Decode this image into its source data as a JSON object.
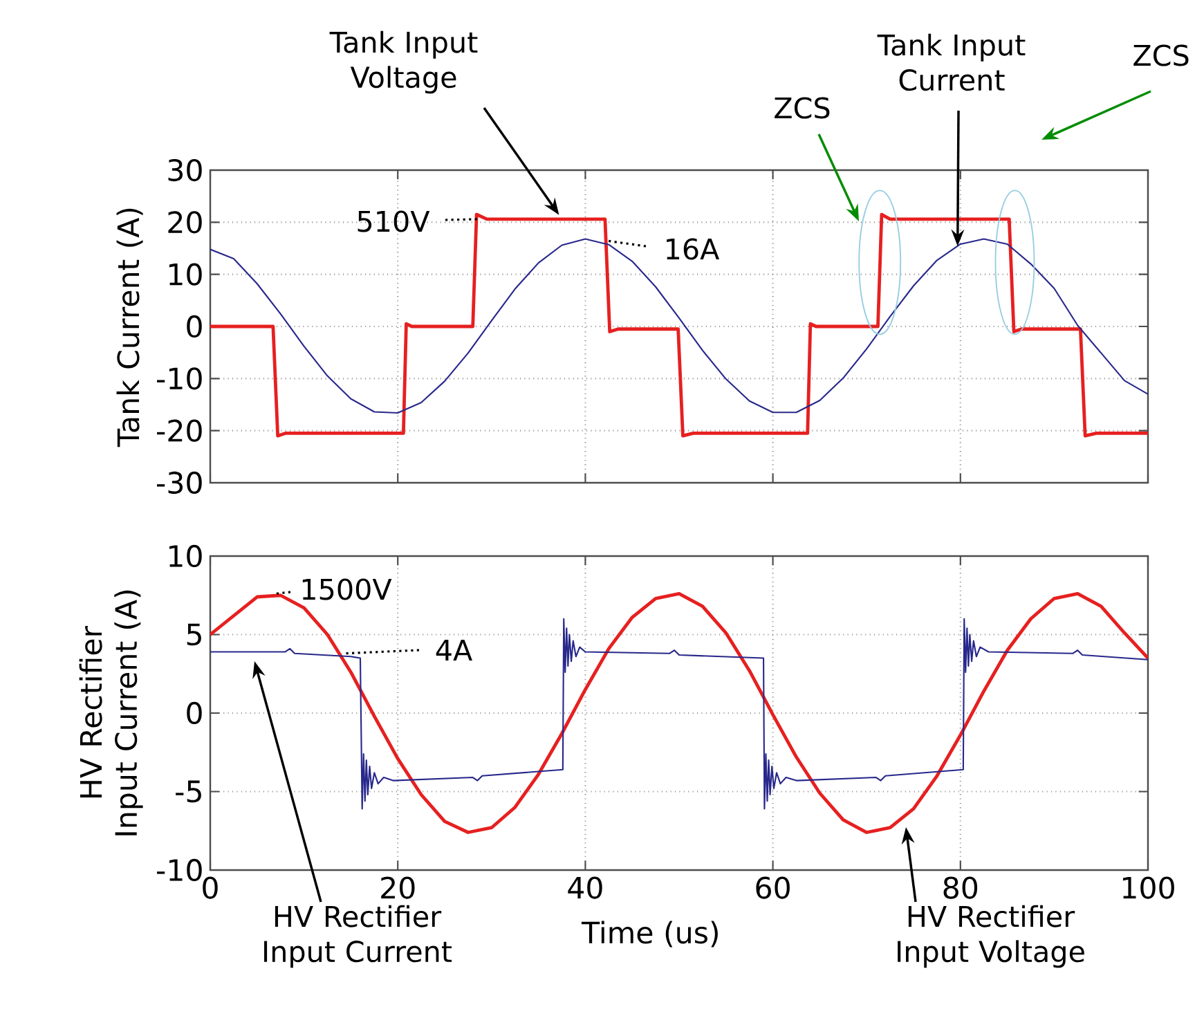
{
  "chart_data": [
    {
      "type": "line",
      "ylabel": "Tank Current (A)",
      "xlim": [
        0,
        100
      ],
      "xticks": [
        0,
        20,
        40,
        60,
        80,
        100
      ],
      "ylim": [
        -30,
        30
      ],
      "yticks": [
        -30,
        -20,
        -10,
        0,
        10,
        20,
        30
      ],
      "grid": true,
      "tick_labels": "y",
      "series": [
        {
          "color": "#e62020",
          "x": [
            0,
            6.7,
            7.2,
            8,
            20.6,
            20.9,
            21.5,
            28.0,
            28.4,
            29.5,
            42.1,
            42.6,
            43.5,
            49.9,
            50.4,
            51.5,
            63.7,
            64.0,
            64.6,
            71.2,
            71.6,
            72.5,
            85.2,
            85.7,
            86.5,
            92.8,
            93.3,
            94.5,
            100
          ],
          "values": [
            0,
            0,
            -21,
            -20.5,
            -20.5,
            0.5,
            0,
            0,
            21.5,
            20.6,
            20.6,
            -1,
            -0.5,
            -0.5,
            -21,
            -20.5,
            -20.5,
            0.5,
            0,
            0,
            21.5,
            20.6,
            20.6,
            -1,
            -0.5,
            -0.5,
            -21,
            -20.5,
            -20.5
          ]
        },
        {
          "color": "#28288c",
          "x": [
            0,
            2.5,
            5,
            7.5,
            10,
            12.5,
            15,
            17.5,
            20,
            22.5,
            25,
            27.5,
            30,
            32.5,
            35,
            37.5,
            40,
            42.5,
            45,
            47.5,
            50,
            52.5,
            55,
            57.5,
            60,
            62.5,
            65,
            67.5,
            70,
            72.5,
            75,
            77.5,
            80,
            82.5,
            85,
            87.5,
            90,
            92.5,
            95,
            97.5,
            100
          ],
          "values": [
            14.8,
            13.0,
            8.2,
            2.4,
            -3.8,
            -9.5,
            -13.9,
            -16.4,
            -16.6,
            -14.6,
            -10.5,
            -5.1,
            1.1,
            7.2,
            12.2,
            15.6,
            16.8,
            15.7,
            12.5,
            7.6,
            1.6,
            -4.6,
            -10.1,
            -14.3,
            -16.5,
            -16.5,
            -14.2,
            -9.9,
            -4.3,
            1.9,
            7.8,
            12.7,
            15.8,
            16.8,
            15.8,
            12.0,
            7.3,
            0.2,
            -5.1,
            -10.4,
            -13.0
          ]
        }
      ],
      "annotations": [
        {
          "text": "Tank Input Voltage",
          "x": 37.2,
          "y": 21.4
        },
        {
          "text": "510V",
          "x": 28.7,
          "y": 20.6
        },
        {
          "text": "16A",
          "x": 42.1,
          "y": 16.5
        },
        "ZCS",
        {
          "text": "Tank Input Current",
          "x": 79.7,
          "y": 15.4
        },
        "ZCS"
      ]
    },
    {
      "type": "line",
      "ylabel": "HV Rectifier Input Current (A)",
      "xlabel": "Time (us)",
      "xlim": [
        0,
        100
      ],
      "xticks": [
        0,
        20,
        40,
        60,
        80,
        100
      ],
      "ylim": [
        -10,
        10
      ],
      "yticks": [
        -10,
        -5,
        0,
        5,
        10
      ],
      "grid": true,
      "series": [
        {
          "color": "#e62020",
          "x": [
            0,
            2.5,
            5,
            7.5,
            10,
            12.5,
            15,
            17.5,
            20,
            22.5,
            25,
            27.5,
            30,
            32.5,
            35,
            37.5,
            40,
            42.5,
            45,
            47.5,
            50,
            52.5,
            55,
            57.5,
            60,
            62.5,
            65,
            67.5,
            70,
            72.5,
            75,
            77.5,
            80,
            82.5,
            85,
            87.5,
            90,
            92.5,
            95,
            97.5,
            100
          ],
          "values": [
            5.0,
            6.2,
            7.4,
            7.5,
            6.7,
            5.0,
            2.6,
            -0.2,
            -2.9,
            -5.2,
            -6.9,
            -7.6,
            -7.3,
            -6.0,
            -3.9,
            -1.3,
            1.5,
            4.1,
            6.1,
            7.3,
            7.6,
            6.8,
            5.1,
            2.7,
            -0.1,
            -2.8,
            -5.1,
            -6.8,
            -7.6,
            -7.3,
            -6.1,
            -4.0,
            -1.4,
            1.4,
            4.0,
            6.0,
            7.3,
            7.6,
            6.8,
            5.1,
            3.5
          ]
        },
        {
          "color": "#28288c",
          "x": [
            0,
            8,
            8.5,
            9,
            15,
            16.0,
            16.2,
            16.35,
            16.5,
            16.65,
            16.8,
            17.0,
            17.2,
            17.5,
            17.9,
            18.5,
            19.5,
            28,
            28.5,
            29,
            37.6,
            37.7,
            37.85,
            38.0,
            38.15,
            38.3,
            38.5,
            38.7,
            39.0,
            39.4,
            40,
            49,
            49.5,
            50,
            59.0,
            59.1,
            59.25,
            59.4,
            59.55,
            59.7,
            59.9,
            60.1,
            60.4,
            60.8,
            61.4,
            62.5,
            71,
            71.5,
            72,
            80.3,
            80.4,
            80.55,
            80.7,
            80.85,
            81.0,
            81.2,
            81.4,
            81.7,
            82.1,
            83,
            92,
            92.5,
            93,
            100
          ],
          "values": [
            3.9,
            3.9,
            4.1,
            3.8,
            3.6,
            3.5,
            -6.1,
            -2.6,
            -5.6,
            -3.0,
            -5.2,
            -3.4,
            -4.8,
            -3.8,
            -4.5,
            -4.1,
            -4.3,
            -4.1,
            -4.3,
            -4.0,
            -3.6,
            6.0,
            2.6,
            5.4,
            3.0,
            5.0,
            3.3,
            4.6,
            3.6,
            4.2,
            3.9,
            3.8,
            4.0,
            3.7,
            3.5,
            -6.1,
            -2.6,
            -5.6,
            -3.0,
            -5.2,
            -3.4,
            -4.8,
            -3.8,
            -4.5,
            -4.1,
            -4.3,
            -4.1,
            -4.3,
            -4.0,
            -3.6,
            6.0,
            2.6,
            5.4,
            3.0,
            5.0,
            3.3,
            4.6,
            3.6,
            4.2,
            3.9,
            3.8,
            4.0,
            3.7,
            3.4
          ]
        }
      ],
      "annotations": [
        {
          "text": "1500V",
          "x": 6.9,
          "y": 7.6
        },
        {
          "text": "4A",
          "x": 14.4,
          "y": 3.8
        },
        "HV Rectifier Input Current",
        "HV Rectifier Input Voltage"
      ]
    }
  ]
}
